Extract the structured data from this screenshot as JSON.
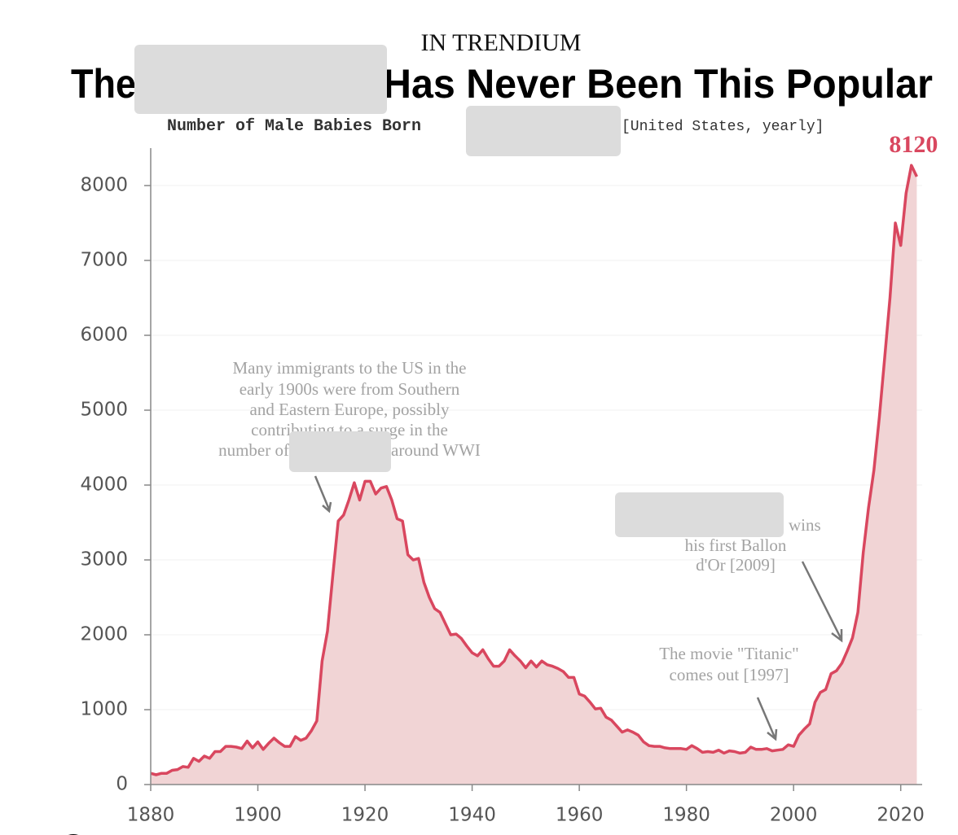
{
  "chart_data": {
    "type": "area",
    "kicker": "IN TRENDIUM",
    "title_parts": [
      "The",
      "Has Never Been This Popular"
    ],
    "subtitle": "Number of Male Babies Born",
    "subtitle_note": "[United States, yearly]",
    "color": "#d9475f",
    "fill": "#f1d4d5",
    "grid": true,
    "xlim": [
      1880,
      2024
    ],
    "xticks": [
      1880,
      1900,
      1920,
      1940,
      1960,
      1980,
      2000,
      2020
    ],
    "ylim": [
      0,
      8500
    ],
    "yticks": [
      0,
      1000,
      2000,
      3000,
      4000,
      5000,
      6000,
      7000,
      8000
    ],
    "x": [
      1880,
      1881,
      1882,
      1883,
      1884,
      1885,
      1886,
      1887,
      1888,
      1889,
      1890,
      1891,
      1892,
      1893,
      1894,
      1895,
      1896,
      1897,
      1898,
      1899,
      1900,
      1901,
      1902,
      1903,
      1904,
      1905,
      1906,
      1907,
      1908,
      1909,
      1910,
      1911,
      1912,
      1913,
      1914,
      1915,
      1916,
      1917,
      1918,
      1919,
      1920,
      1921,
      1922,
      1923,
      1924,
      1925,
      1926,
      1927,
      1928,
      1929,
      1930,
      1931,
      1932,
      1933,
      1934,
      1935,
      1936,
      1937,
      1938,
      1939,
      1940,
      1941,
      1942,
      1943,
      1944,
      1945,
      1946,
      1947,
      1948,
      1949,
      1950,
      1951,
      1952,
      1953,
      1954,
      1955,
      1956,
      1957,
      1958,
      1959,
      1960,
      1961,
      1962,
      1963,
      1964,
      1965,
      1966,
      1967,
      1968,
      1969,
      1970,
      1971,
      1972,
      1973,
      1974,
      1975,
      1976,
      1977,
      1978,
      1979,
      1980,
      1981,
      1982,
      1983,
      1984,
      1985,
      1986,
      1987,
      1988,
      1989,
      1990,
      1991,
      1992,
      1993,
      1994,
      1995,
      1996,
      1997,
      1998,
      1999,
      2000,
      2001,
      2002,
      2003,
      2004,
      2005,
      2006,
      2007,
      2008,
      2009,
      2010,
      2011,
      2012,
      2013,
      2014,
      2015,
      2016,
      2017,
      2018,
      2019,
      2020,
      2021,
      2022,
      2023
    ],
    "values": [
      150,
      130,
      150,
      150,
      190,
      200,
      240,
      230,
      350,
      310,
      380,
      350,
      440,
      440,
      510,
      510,
      500,
      480,
      580,
      490,
      570,
      470,
      550,
      620,
      560,
      510,
      510,
      640,
      590,
      620,
      720,
      850,
      1650,
      2050,
      2800,
      3520,
      3600,
      3800,
      4030,
      3800,
      4050,
      4050,
      3880,
      3960,
      3980,
      3800,
      3550,
      3520,
      3070,
      3000,
      3020,
      2700,
      2500,
      2350,
      2300,
      2150,
      2000,
      2010,
      1950,
      1850,
      1760,
      1720,
      1800,
      1680,
      1580,
      1580,
      1650,
      1800,
      1720,
      1650,
      1560,
      1650,
      1570,
      1650,
      1600,
      1580,
      1550,
      1510,
      1430,
      1430,
      1210,
      1180,
      1100,
      1010,
      1020,
      900,
      860,
      780,
      700,
      730,
      700,
      660,
      570,
      520,
      510,
      510,
      490,
      480,
      480,
      480,
      470,
      520,
      480,
      430,
      440,
      430,
      460,
      420,
      450,
      440,
      420,
      430,
      500,
      470,
      470,
      480,
      450,
      460,
      470,
      530,
      510,
      660,
      740,
      810,
      1100,
      1230,
      1270,
      1480,
      1520,
      1620,
      1780,
      1960,
      2300,
      3100,
      3700,
      4200,
      4900,
      5700,
      6500,
      7500,
      7200,
      7900,
      8270,
      8120
    ],
    "annotations": [
      {
        "lines": [
          "Many immigrants to the US in the",
          "early 1900s were from Southern",
          "and Eastern Europe, possibly",
          "contributing to a surge in the",
          "number of",
          "around WWI"
        ]
      },
      {
        "lines": [
          "wins",
          "his first Ballon",
          "d'Or [2009]"
        ]
      },
      {
        "lines": [
          "The movie \"Titanic\"",
          "comes out [1997]"
        ]
      }
    ]
  }
}
